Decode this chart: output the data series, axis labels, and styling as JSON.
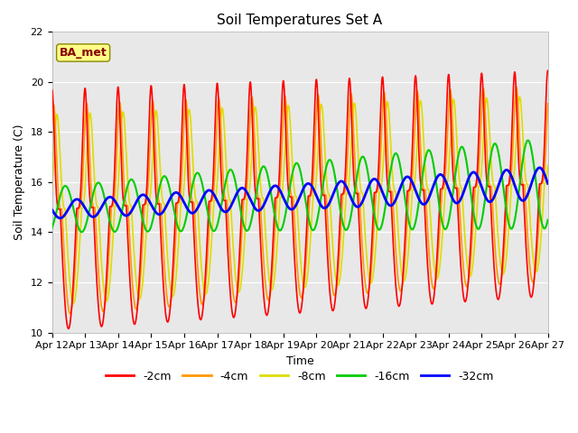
{
  "title": "Soil Temperatures Set A",
  "xlabel": "Time",
  "ylabel": "Soil Temperature (C)",
  "ylim": [
    10,
    22
  ],
  "xlim": [
    0,
    15
  ],
  "bg_color": "#e8e8e8",
  "fig_color": "#ffffff",
  "annotation_text": "BA_met",
  "annotation_bg": "#ffff88",
  "annotation_border": "#888800",
  "annotation_text_color": "#880000",
  "x_tick_labels": [
    "Apr 12",
    "Apr 13",
    "Apr 14",
    "Apr 15",
    "Apr 16",
    "Apr 17",
    "Apr 18",
    "Apr 19",
    "Apr 20",
    "Apr 21",
    "Apr 22",
    "Apr 23",
    "Apr 24",
    "Apr 25",
    "Apr 26",
    "Apr 27"
  ],
  "series": {
    "neg2cm": {
      "color": "#ff0000",
      "lw": 1.2,
      "label": "-2cm"
    },
    "neg4cm": {
      "color": "#ff9900",
      "lw": 1.2,
      "label": "-4cm"
    },
    "neg8cm": {
      "color": "#dddd00",
      "lw": 1.2,
      "label": "-8cm"
    },
    "neg16cm": {
      "color": "#00cc00",
      "lw": 1.5,
      "label": "-16cm"
    },
    "neg32cm": {
      "color": "#0000ff",
      "lw": 2.0,
      "label": "-32cm"
    }
  }
}
